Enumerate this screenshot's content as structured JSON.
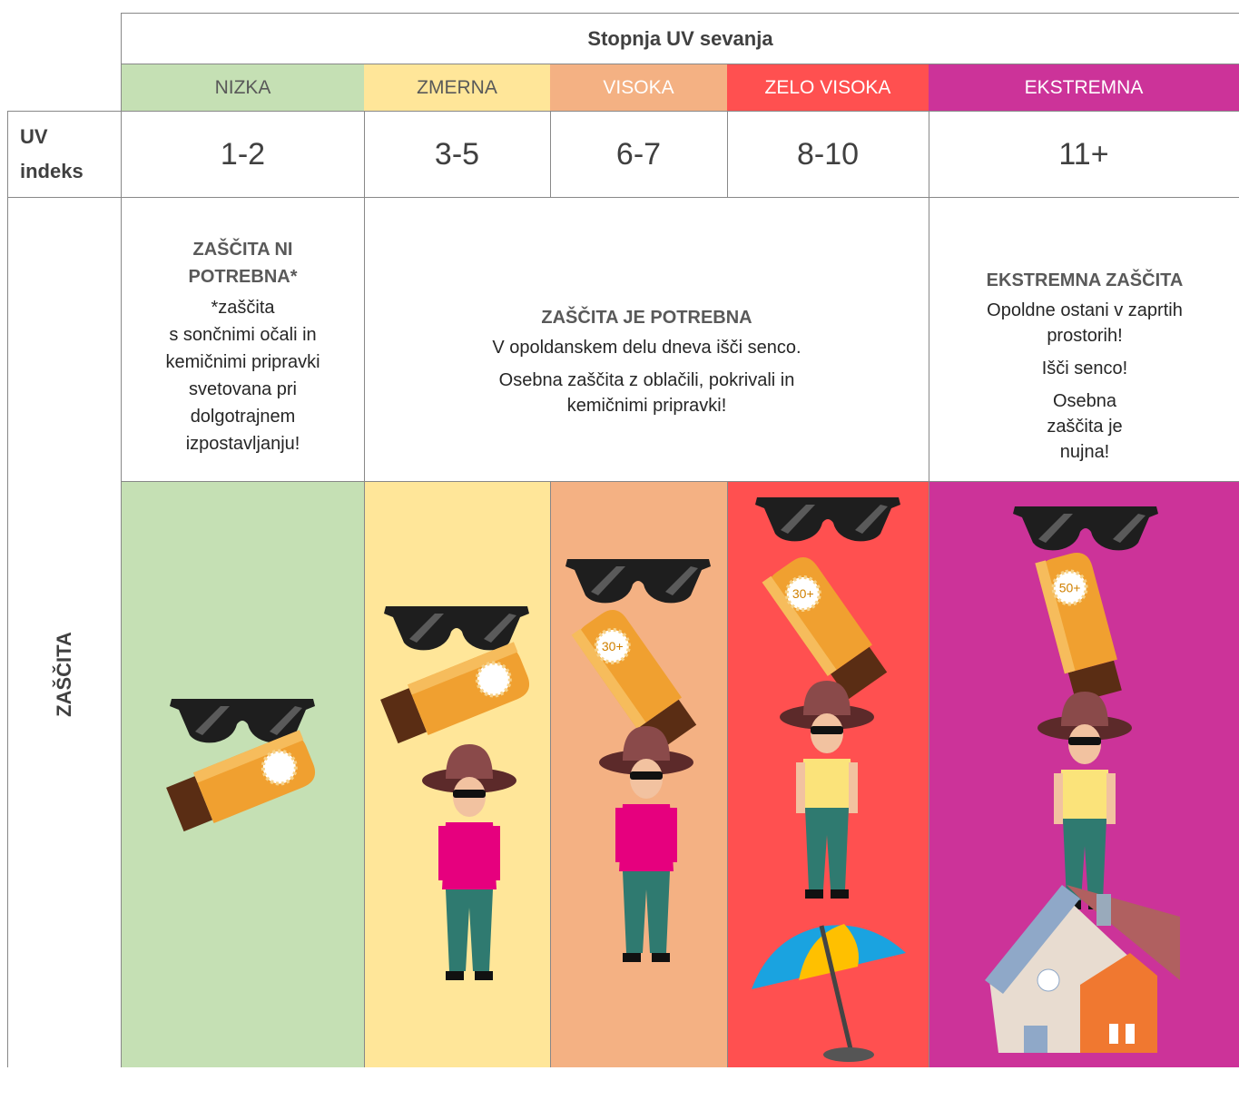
{
  "header": {
    "title": "Stopnja UV sevanja",
    "uv_label": "UV indeks",
    "protection_label": "ZAŠČITA"
  },
  "levels": [
    {
      "name": "NIZKA",
      "uv": "1-2",
      "color": "#c5e0b4",
      "text_color": "#595959"
    },
    {
      "name": "ZMERNA",
      "uv": "3-5",
      "color": "#ffe699",
      "text_color": "#595959"
    },
    {
      "name": "VISOKA",
      "uv": "6-7",
      "color": "#f4b183",
      "text_color": "#ffffff"
    },
    {
      "name": "ZELO VISOKA",
      "uv": "8-10",
      "color": "#ff5050",
      "text_color": "#ffffff"
    },
    {
      "name": "EKSTREMNA",
      "uv": "11+",
      "color": "#cc3399",
      "text_color": "#ffffff"
    }
  ],
  "protection": [
    {
      "title": "ZAŠČITA NI POTREBNA*",
      "lines": [
        "*zaščita",
        "s sončnimi očali in kemičnimi pripravki svetovana pri dolgotrajnem izpostavljanju!"
      ]
    },
    {
      "title": "ZAŠČITA JE POTREBNA",
      "lines": [
        "V opoldanskem delu dneva išči senco.",
        "Osebna zaščita z oblačili, pokrivali in kemičnimi pripravki!"
      ]
    },
    {
      "title": "EKSTREMNA ZAŠČITA",
      "lines": [
        "Opoldne ostani v zaprtih prostorih!",
        "Išči senco!",
        "Osebna zaščita je nujna!"
      ]
    }
  ],
  "sunscreen_labels": [
    "30+",
    "30+",
    "50+"
  ]
}
